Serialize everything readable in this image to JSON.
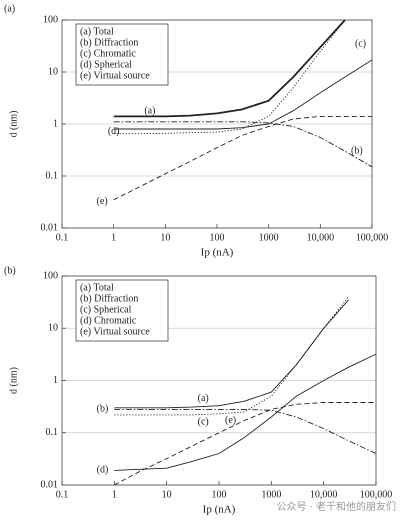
{
  "chart_data": [
    {
      "type": "line",
      "panel": "(a)",
      "y_label": "d (nm)",
      "x_label": "Ip (nA)",
      "log_x": true,
      "log_y": true,
      "grid": true,
      "legend": "upper left",
      "x": [
        1,
        3,
        10,
        30,
        100,
        300,
        1000,
        3000,
        10000,
        30000,
        100000
      ],
      "xlim": [
        0.1,
        100000
      ],
      "xticks": [
        0.1,
        1,
        10,
        100,
        1000,
        {
          "value": 10000,
          "label": "10,000"
        },
        {
          "value": 100000,
          "label": "100,000"
        }
      ],
      "ylim": [
        0.01,
        100
      ],
      "yticks": [
        0.01,
        0.1,
        1,
        10,
        100
      ],
      "curve_labels": [
        "(a)",
        "(b)",
        "(c)",
        "(d)",
        "(e)"
      ],
      "series": [
        {
          "name": "(a) Total",
          "color": "#222",
          "style": "bold",
          "values": [
            1.4,
            1.4,
            1.4,
            1.45,
            1.6,
            1.9,
            2.8,
            8,
            30,
            100,
            null
          ]
        },
        {
          "name": "(b) Diffraction",
          "color": "#222",
          "style": "dashdot",
          "values": [
            1.1,
            1.1,
            1.1,
            1.1,
            1.1,
            1.1,
            1.05,
            0.9,
            0.55,
            0.3,
            0.15
          ]
        },
        {
          "name": "(c) Chromatic",
          "color": "#222",
          "style": "solid",
          "values": [
            0.8,
            0.8,
            0.8,
            0.8,
            0.8,
            0.85,
            1.0,
            1.8,
            4,
            8,
            17
          ]
        },
        {
          "name": "(d) Spherical",
          "color": "#222",
          "style": "dotted",
          "values": [
            0.65,
            0.65,
            0.66,
            0.68,
            0.7,
            0.8,
            1.4,
            5,
            25,
            100,
            null
          ]
        },
        {
          "name": "(e) Virtual source",
          "color": "#222",
          "style": "dashed",
          "values": [
            0.035,
            0.06,
            0.11,
            0.19,
            0.35,
            0.6,
            0.9,
            1.25,
            1.4,
            1.4,
            1.4
          ]
        }
      ]
    },
    {
      "type": "line",
      "panel": "(b)",
      "y_label": "d (nm)",
      "x_label": "Ip (nA)",
      "log_x": true,
      "log_y": true,
      "grid": true,
      "legend": "upper left",
      "x": [
        1,
        3,
        10,
        30,
        100,
        300,
        1000,
        3000,
        10000,
        30000,
        100000
      ],
      "xlim": [
        0.1,
        100000
      ],
      "xticks": [
        0.1,
        1,
        10,
        100,
        1000,
        {
          "value": 10000,
          "label": "10,000"
        },
        {
          "value": 100000,
          "label": "100,000"
        }
      ],
      "ylim": [
        0.01,
        100
      ],
      "yticks": [
        0.01,
        0.1,
        1,
        10,
        100
      ],
      "curve_labels": [
        "(a)",
        "(b)",
        "(c)",
        "(d)",
        "(e)"
      ],
      "series": [
        {
          "name": "(a) Total",
          "color": "#222",
          "style": "solid",
          "values": [
            0.3,
            0.3,
            0.3,
            0.31,
            0.33,
            0.4,
            0.6,
            2,
            10,
            35,
            null
          ]
        },
        {
          "name": "(b) Diffraction",
          "color": "#222",
          "style": "dashdot",
          "values": [
            0.28,
            0.28,
            0.28,
            0.28,
            0.28,
            0.28,
            0.27,
            0.2,
            0.12,
            0.07,
            0.04
          ]
        },
        {
          "name": "(c) Spherical",
          "color": "#222",
          "style": "dotted",
          "values": [
            0.22,
            0.22,
            0.22,
            0.22,
            0.23,
            0.25,
            0.5,
            2,
            10,
            40,
            null
          ]
        },
        {
          "name": "(d) Chromatic",
          "color": "#222",
          "style": "solid",
          "values": [
            0.019,
            0.02,
            0.021,
            0.028,
            0.04,
            0.08,
            0.2,
            0.5,
            1,
            1.8,
            3.2
          ]
        },
        {
          "name": "(e) Virtual source",
          "color": "#222",
          "style": "dashed",
          "values": [
            0.01,
            0.018,
            0.032,
            0.055,
            0.1,
            0.17,
            0.28,
            0.35,
            0.38,
            0.38,
            0.38
          ]
        }
      ]
    }
  ],
  "watermark": "公众号 · 老千和他的朋友们"
}
